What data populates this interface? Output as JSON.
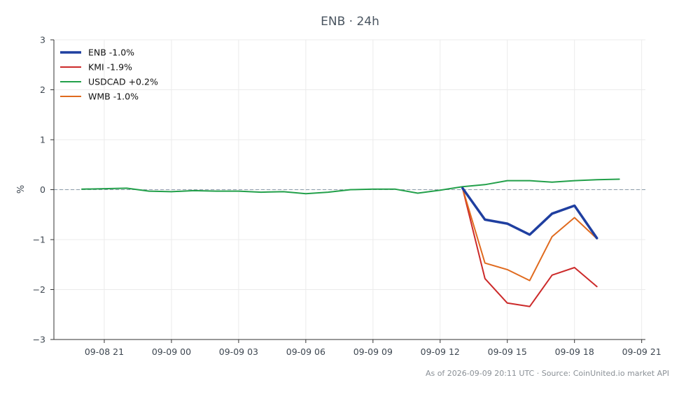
{
  "chart_data": {
    "type": "line",
    "title": "ENB · 24h",
    "xlabel": "",
    "ylabel": "%",
    "x_ticks": [
      "09-08 21",
      "09-09 00",
      "09-09 03",
      "09-09 06",
      "09-09 09",
      "09-09 12",
      "09-09 15",
      "09-09 18",
      "09-09 21"
    ],
    "y_ticks": [
      "3",
      "2",
      "1",
      "0",
      "−1",
      "−2",
      "−3"
    ],
    "ylim": [
      -3,
      3
    ],
    "xlim": [
      "09-08 18:45",
      "09-09 21:10"
    ],
    "grid": true,
    "zero_line": "dashed",
    "legend_position": "top-left",
    "series": [
      {
        "name": "ENB -1.0%",
        "color": "#1f3fa0",
        "width": 3.5,
        "x": [
          "09-09 13:00",
          "09-09 14:00",
          "09-09 15:00",
          "09-09 16:00",
          "09-09 17:00",
          "09-09 18:00",
          "09-09 19:00"
        ],
        "values": [
          0.03,
          -0.6,
          -0.68,
          -0.9,
          -0.48,
          -0.32,
          -0.97
        ]
      },
      {
        "name": "KMI -1.9%",
        "color": "#cc2a2a",
        "width": 2,
        "x": [
          "09-09 13:00",
          "09-09 14:00",
          "09-09 15:00",
          "09-09 16:00",
          "09-09 17:00",
          "09-09 18:00",
          "09-09 19:00"
        ],
        "values": [
          0.03,
          -1.78,
          -2.27,
          -2.34,
          -1.71,
          -1.56,
          -1.94
        ]
      },
      {
        "name": "USDCAD +0.2%",
        "color": "#22a04a",
        "width": 2,
        "x": [
          "09-08 20:00",
          "09-08 21:00",
          "09-08 22:00",
          "09-08 23:00",
          "09-09 00:00",
          "09-09 01:00",
          "09-09 02:00",
          "09-09 03:00",
          "09-09 04:00",
          "09-09 05:00",
          "09-09 06:00",
          "09-09 07:00",
          "09-09 08:00",
          "09-09 09:00",
          "09-09 10:00",
          "09-09 11:00",
          "09-09 12:00",
          "09-09 13:00",
          "09-09 14:00",
          "09-09 15:00",
          "09-09 16:00",
          "09-09 17:00",
          "09-09 18:00",
          "09-09 19:00",
          "09-09 20:00"
        ],
        "values": [
          0.01,
          0.02,
          0.03,
          -0.03,
          -0.04,
          -0.02,
          -0.03,
          -0.03,
          -0.05,
          -0.04,
          -0.08,
          -0.05,
          0.0,
          0.01,
          0.01,
          -0.07,
          -0.01,
          0.06,
          0.1,
          0.18,
          0.18,
          0.15,
          0.18,
          0.2,
          0.21
        ]
      },
      {
        "name": "WMB -1.0%",
        "color": "#e06a1e",
        "width": 2,
        "x": [
          "09-09 13:00",
          "09-09 14:00",
          "09-09 15:00",
          "09-09 16:00",
          "09-09 17:00",
          "09-09 18:00",
          "09-09 19:00"
        ],
        "values": [
          0.03,
          -1.47,
          -1.6,
          -1.82,
          -0.94,
          -0.56,
          -0.98
        ]
      }
    ],
    "footer": "As of 2026-09-09 20:11 UTC · Source: CoinUnited.io market API"
  }
}
